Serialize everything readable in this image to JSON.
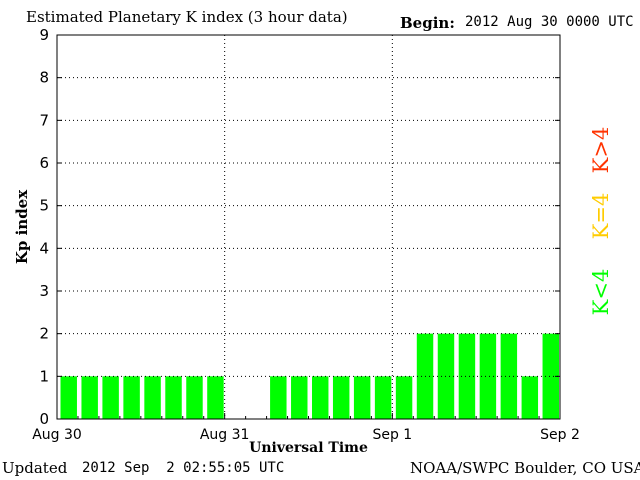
{
  "header": {
    "title": "Estimated Planetary K index (3 hour data)",
    "begin_label": "Begin:",
    "begin_value": "2012 Aug 30 0000 UTC"
  },
  "footer": {
    "updated_label": "Updated",
    "updated_value": "2012 Sep  2 02:55:05 UTC",
    "credit": "NOAA/SWPC Boulder, CO USA"
  },
  "legend": {
    "above": "K>4",
    "equal": "K=4",
    "below": "K<4"
  },
  "colors": {
    "below": "#00ff00",
    "equal": "#ffcc00",
    "above": "#ff3300",
    "grid": "#000000"
  },
  "chart_data": {
    "type": "bar",
    "title": "Estimated Planetary K index (3 hour data)",
    "xlabel": "Universal Time",
    "ylabel": "Kp index",
    "ylim": [
      0,
      9
    ],
    "y_ticks": [
      "0",
      "1",
      "2",
      "3",
      "4",
      "5",
      "6",
      "7",
      "8",
      "9"
    ],
    "x_ticks": [
      "Aug 30",
      "Aug 31",
      "Sep 1",
      "Sep 2"
    ],
    "grid": true,
    "interval_hours": 3,
    "values": [
      1,
      1,
      1,
      1,
      1,
      1,
      1,
      1,
      null,
      null,
      1,
      1,
      1,
      1,
      1,
      1,
      1,
      2,
      2,
      2,
      2,
      2,
      1,
      2
    ]
  }
}
